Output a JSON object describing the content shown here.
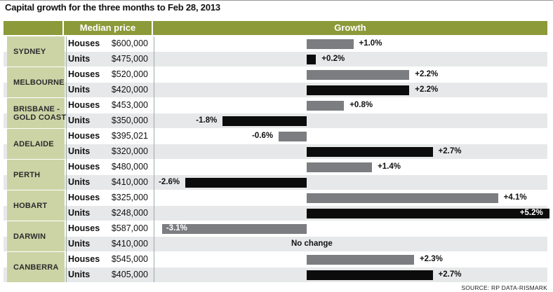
{
  "title": "Capital growth for the three months to Feb 28, 2013",
  "header": {
    "price": "Median price",
    "growth": "Growth"
  },
  "source": "SOURCE: RP DATA-RISMARK",
  "colors": {
    "header": "#8c9a3a",
    "city": "#ccd4a6",
    "houses_bar": "#7b7d80",
    "units_bar": "#0c0c0c"
  },
  "chart_data": {
    "type": "bar",
    "orientation": "horizontal",
    "title": "Capital growth for the three months to Feb 28, 2013",
    "series": [
      {
        "name": "Houses"
      },
      {
        "name": "Units"
      }
    ],
    "cities": [
      {
        "name": "SYDNEY",
        "rows": [
          {
            "type": "Houses",
            "price": "$600,000",
            "growth": 1.0,
            "label": "+1.0%"
          },
          {
            "type": "Units",
            "price": "$475,000",
            "growth": 0.2,
            "label": "+0.2%"
          }
        ]
      },
      {
        "name": "MELBOURNE",
        "rows": [
          {
            "type": "Houses",
            "price": "$520,000",
            "growth": 2.2,
            "label": "+2.2%"
          },
          {
            "type": "Units",
            "price": "$420,000",
            "growth": 2.2,
            "label": "+2.2%"
          }
        ]
      },
      {
        "name": "BRISBANE -\nGOLD COAST",
        "rows": [
          {
            "type": "Houses",
            "price": "$453,000",
            "growth": 0.8,
            "label": "+0.8%"
          },
          {
            "type": "Units",
            "price": "$350,000",
            "growth": -1.8,
            "label": "-1.8%"
          }
        ]
      },
      {
        "name": "ADELAIDE",
        "rows": [
          {
            "type": "Houses",
            "price": "$395,021",
            "growth": -0.6,
            "label": "-0.6%"
          },
          {
            "type": "Units",
            "price": "$320,000",
            "growth": 2.7,
            "label": "+2.7%"
          }
        ]
      },
      {
        "name": "PERTH",
        "rows": [
          {
            "type": "Houses",
            "price": "$480,000",
            "growth": 1.4,
            "label": "+1.4%"
          },
          {
            "type": "Units",
            "price": "$410,000",
            "growth": -2.6,
            "label": "-2.6%"
          }
        ]
      },
      {
        "name": "HOBART",
        "rows": [
          {
            "type": "Houses",
            "price": "$325,000",
            "growth": 4.1,
            "label": "+4.1%"
          },
          {
            "type": "Units",
            "price": "$248,000",
            "growth": 5.2,
            "label": "+5.2%"
          }
        ]
      },
      {
        "name": "DARWIN",
        "rows": [
          {
            "type": "Houses",
            "price": "$587,000",
            "growth": -3.1,
            "label": "-3.1%"
          },
          {
            "type": "Units",
            "price": "$410,000",
            "growth": 0,
            "label": "No change"
          }
        ]
      },
      {
        "name": "CANBERRA",
        "rows": [
          {
            "type": "Houses",
            "price": "$545,000",
            "growth": 2.3,
            "label": "+2.3%"
          },
          {
            "type": "Units",
            "price": "$405,000",
            "growth": 2.7,
            "label": "+2.7%"
          }
        ]
      }
    ]
  }
}
